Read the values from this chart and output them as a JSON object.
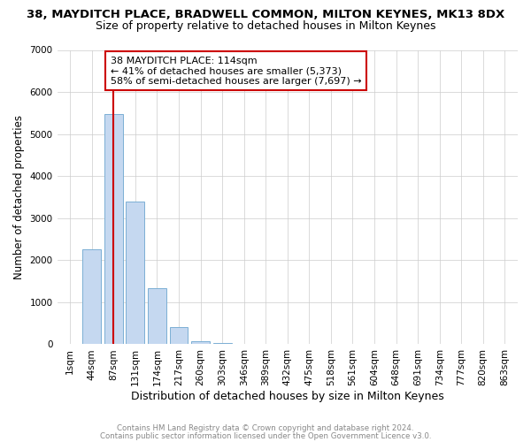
{
  "title": "38, MAYDITCH PLACE, BRADWELL COMMON, MILTON KEYNES, MK13 8DX",
  "subtitle": "Size of property relative to detached houses in Milton Keynes",
  "xlabel": "Distribution of detached houses by size in Milton Keynes",
  "ylabel": "Number of detached properties",
  "categories": [
    "1sqm",
    "44sqm",
    "87sqm",
    "131sqm",
    "174sqm",
    "217sqm",
    "260sqm",
    "303sqm",
    "346sqm",
    "389sqm",
    "432sqm",
    "475sqm",
    "518sqm",
    "561sqm",
    "604sqm",
    "648sqm",
    "691sqm",
    "734sqm",
    "777sqm",
    "820sqm",
    "863sqm"
  ],
  "values": [
    0,
    2260,
    5480,
    3390,
    1330,
    410,
    80,
    30,
    10,
    5,
    2,
    1,
    1,
    0,
    0,
    0,
    0,
    0,
    0,
    0,
    0
  ],
  "bar_color": "#c5d8f0",
  "bar_edge_color": "#7bafd4",
  "vline_x": 2,
  "vline_color": "#cc0000",
  "annotation_text": "38 MAYDITCH PLACE: 114sqm\n← 41% of detached houses are smaller (5,373)\n58% of semi-detached houses are larger (7,697) →",
  "annotation_box_color": "#ffffff",
  "annotation_box_edge": "#cc0000",
  "ylim": [
    0,
    7000
  ],
  "yticks": [
    0,
    1000,
    2000,
    3000,
    4000,
    5000,
    6000,
    7000
  ],
  "footer1": "Contains HM Land Registry data © Crown copyright and database right 2024.",
  "footer2": "Contains public sector information licensed under the Open Government Licence v3.0.",
  "bg_color": "#ffffff",
  "grid_color": "#cccccc",
  "title_fontsize": 9.5,
  "subtitle_fontsize": 9,
  "xlabel_fontsize": 9,
  "ylabel_fontsize": 8.5,
  "tick_fontsize": 7.5,
  "footer_fontsize": 6.2,
  "annotation_fontsize": 8
}
